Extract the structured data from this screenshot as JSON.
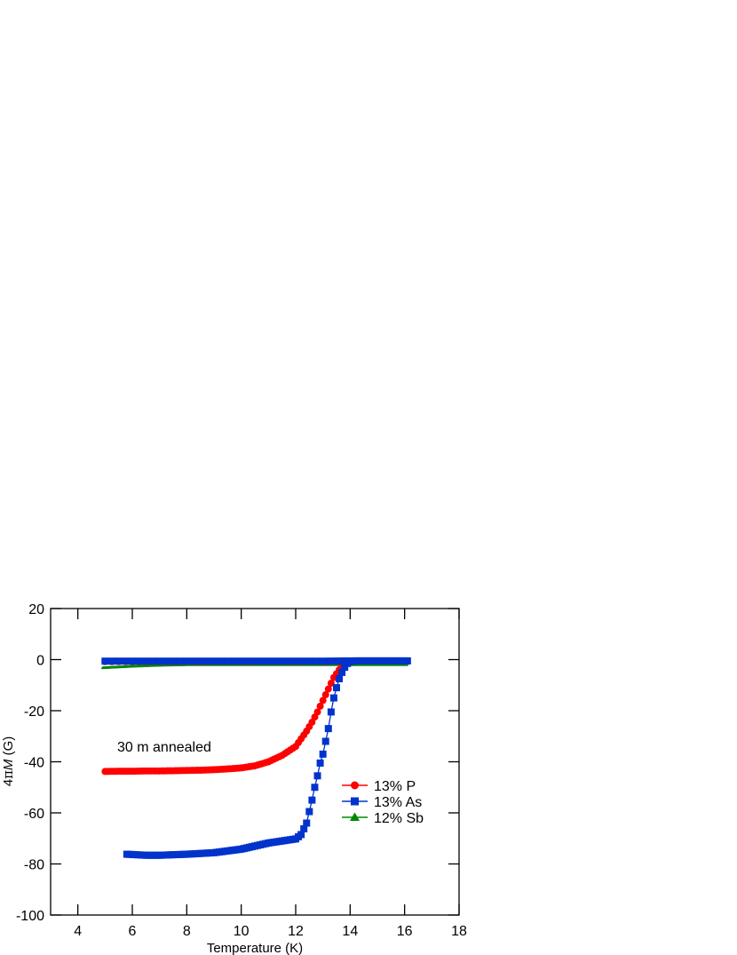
{
  "chart_data": {
    "type": "line",
    "title": "",
    "xlabel": "Temperature (K)",
    "ylabel": "4πM (G)",
    "ylabel_parts": {
      "prefix": "4",
      "pi": "π",
      "var": "M",
      "unit": " (G)"
    },
    "xlim": [
      3,
      18
    ],
    "ylim": [
      -100,
      20
    ],
    "xticks": [
      4,
      6,
      8,
      10,
      12,
      14,
      16,
      18
    ],
    "yticks": [
      20,
      0,
      -20,
      -40,
      -60,
      -80,
      -100
    ],
    "grid": false,
    "legend_position": "center-right",
    "annotation": "30 m annealed",
    "series": [
      {
        "name": "13% P",
        "color": "#ff0000",
        "marker": "circle",
        "zfc": {
          "x": [
            5.0,
            5.5,
            6.0,
            6.5,
            7.0,
            7.5,
            8.0,
            8.5,
            9.0,
            9.5,
            10.0,
            10.5,
            11.0,
            11.5,
            12.0,
            12.2,
            12.4,
            12.6,
            12.8,
            13.0,
            13.2,
            13.4,
            13.6,
            13.8,
            14.0
          ],
          "y": [
            -43.8,
            -43.7,
            -43.7,
            -43.6,
            -43.6,
            -43.5,
            -43.4,
            -43.3,
            -43.1,
            -42.8,
            -42.4,
            -41.6,
            -40.0,
            -37.5,
            -34.0,
            -31.0,
            -28.0,
            -24.5,
            -20.5,
            -16.0,
            -11.5,
            -7.0,
            -4.0,
            -1.8,
            -0.6
          ]
        },
        "fc": {
          "x": [
            5.0,
            6.0,
            7.0,
            8.0,
            9.0,
            10.0,
            11.0,
            12.0,
            13.0,
            14.0
          ],
          "y": [
            -0.8,
            -0.8,
            -0.8,
            -0.8,
            -0.8,
            -0.8,
            -0.8,
            -0.8,
            -0.8,
            -0.6
          ]
        }
      },
      {
        "name": "13% As",
        "color": "#0033cc",
        "marker": "square",
        "zfc": {
          "x": [
            5.8,
            6.5,
            7.0,
            8.0,
            9.0,
            10.0,
            10.5,
            11.0,
            11.5,
            12.0,
            12.2,
            12.4,
            12.5,
            12.6,
            12.7,
            12.8,
            12.9,
            13.0,
            13.1,
            13.2,
            13.3,
            13.4,
            13.5,
            13.6,
            13.7,
            13.8,
            13.9,
            14.0,
            14.2,
            14.5,
            15.0,
            15.5,
            16.1
          ],
          "y": [
            -76.2,
            -76.6,
            -76.6,
            -76.2,
            -75.6,
            -74.2,
            -73.0,
            -71.8,
            -71.0,
            -70.2,
            -68.5,
            -64.0,
            -59.5,
            -55.0,
            -50.0,
            -45.5,
            -40.5,
            -37.0,
            -32.0,
            -27.0,
            -20.5,
            -15.0,
            -11.0,
            -7.5,
            -5.0,
            -3.0,
            -1.5,
            -0.8,
            -0.5,
            -0.5,
            -0.5,
            -0.5,
            -0.5
          ]
        },
        "fc": {
          "x": [
            5.0,
            6.0,
            7.0,
            8.0,
            9.0,
            10.0,
            11.0,
            12.0,
            13.0,
            14.0,
            15.0,
            16.1
          ],
          "y": [
            -0.6,
            -0.6,
            -0.6,
            -0.6,
            -0.6,
            -0.6,
            -0.6,
            -0.6,
            -0.6,
            -0.5,
            -0.5,
            -0.5
          ]
        }
      },
      {
        "name": "12% Sb",
        "color": "#008800",
        "marker": "triangle",
        "zfc": {
          "x": [
            4.9,
            6.0,
            7.0,
            8.0,
            9.0,
            10.0,
            11.0,
            12.0,
            13.0,
            14.0,
            15.0,
            16.1
          ],
          "y": [
            -3.2,
            -2.6,
            -2.2,
            -2.0,
            -2.0,
            -2.0,
            -2.0,
            -2.0,
            -2.0,
            -2.0,
            -2.0,
            -2.0
          ]
        }
      }
    ]
  }
}
